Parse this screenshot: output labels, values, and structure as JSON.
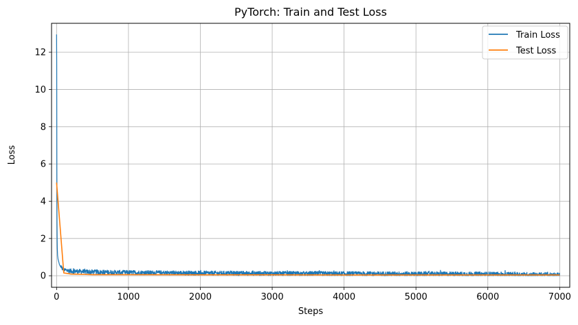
{
  "chart_data": {
    "type": "line",
    "title": "PyTorch: Train and Test Loss",
    "xlabel": "Steps",
    "ylabel": "Loss",
    "xlim": [
      -70,
      7140
    ],
    "ylim": [
      -0.62,
      13.55
    ],
    "xticks": [
      0,
      1000,
      2000,
      3000,
      4000,
      5000,
      6000,
      7000
    ],
    "xtick_labels": [
      "0",
      "1000",
      "2000",
      "3000",
      "4000",
      "5000",
      "6000",
      "7000"
    ],
    "yticks": [
      0,
      2,
      4,
      6,
      8,
      10,
      12
    ],
    "ytick_labels": [
      "0",
      "2",
      "4",
      "6",
      "8",
      "10",
      "12"
    ],
    "grid": true,
    "legend_position": "top-right",
    "series": [
      {
        "name": "Train Loss",
        "color": "#1f77b4",
        "x": [
          0,
          2,
          4,
          6,
          8,
          10,
          14,
          20,
          30,
          40,
          60,
          100,
          200,
          500,
          1000,
          2000,
          3000,
          4000,
          5000,
          6000,
          7000
        ],
        "y": [
          12.95,
          11.5,
          5.8,
          2.9,
          2.0,
          1.5,
          1.1,
          0.9,
          0.75,
          0.6,
          0.45,
          0.32,
          0.25,
          0.2,
          0.17,
          0.14,
          0.12,
          0.11,
          0.1,
          0.09,
          0.05
        ],
        "noise_amplitude": 0.15
      },
      {
        "name": "Test Loss",
        "color": "#ff7f0e",
        "x": [
          0,
          100,
          200,
          300,
          400,
          500,
          1000,
          2000,
          3000,
          4000,
          5000,
          6000,
          7000
        ],
        "y": [
          5.0,
          0.15,
          0.09,
          0.08,
          0.07,
          0.06,
          0.06,
          0.05,
          0.05,
          0.04,
          0.04,
          0.04,
          0.04
        ]
      }
    ]
  }
}
